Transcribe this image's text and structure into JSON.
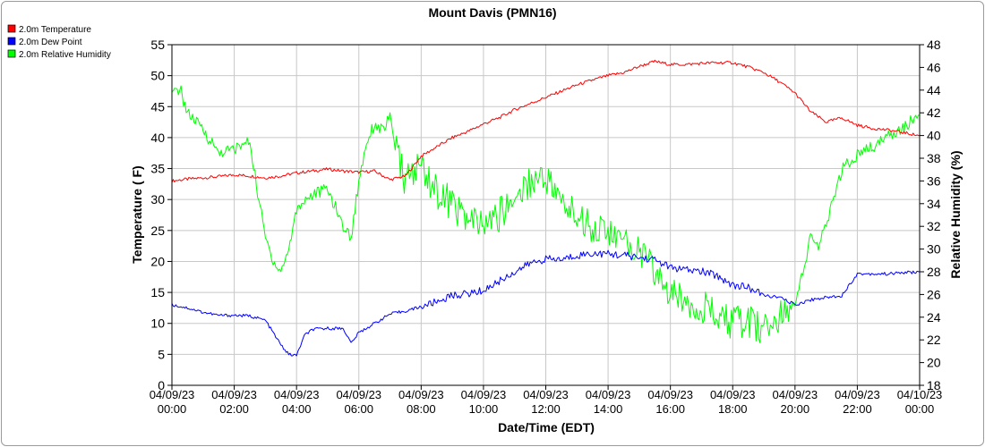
{
  "chart_data": {
    "type": "line",
    "title": "Mount Davis (PMN16)",
    "xlabel": "Date/Time (EDT)",
    "ylabel_left": "Temperature ( F)",
    "ylabel_right": "Relative Humidity (%)",
    "ylim_left": [
      0,
      55
    ],
    "ylim_right": [
      18,
      48
    ],
    "yticks_left": [
      "0",
      "5",
      "10",
      "15",
      "20",
      "25",
      "30",
      "35",
      "40",
      "45",
      "50",
      "55"
    ],
    "yticks_right": [
      "18",
      "20",
      "22",
      "24",
      "26",
      "28",
      "30",
      "32",
      "34",
      "36",
      "38",
      "40",
      "42",
      "44",
      "46",
      "48"
    ],
    "xlim_hours": [
      0,
      24
    ],
    "xticks": [
      {
        "date": "04/09/23",
        "time": "00:00",
        "hour": 0
      },
      {
        "date": "04/09/23",
        "time": "02:00",
        "hour": 2
      },
      {
        "date": "04/09/23",
        "time": "04:00",
        "hour": 4
      },
      {
        "date": "04/09/23",
        "time": "06:00",
        "hour": 6
      },
      {
        "date": "04/09/23",
        "time": "08:00",
        "hour": 8
      },
      {
        "date": "04/09/23",
        "time": "10:00",
        "hour": 10
      },
      {
        "date": "04/09/23",
        "time": "12:00",
        "hour": 12
      },
      {
        "date": "04/09/23",
        "time": "14:00",
        "hour": 14
      },
      {
        "date": "04/09/23",
        "time": "16:00",
        "hour": 16
      },
      {
        "date": "04/09/23",
        "time": "18:00",
        "hour": 18
      },
      {
        "date": "04/09/23",
        "time": "20:00",
        "hour": 20
      },
      {
        "date": "04/09/23",
        "time": "22:00",
        "hour": 22
      },
      {
        "date": "04/10/23",
        "time": "00:00",
        "hour": 24
      }
    ],
    "grid": true,
    "legend_position": "top-left",
    "series": [
      {
        "name": "2.0m Temperature",
        "color": "#ff0000",
        "axis": "left",
        "x": [
          0,
          0.5,
          1,
          1.5,
          2,
          2.5,
          3,
          3.5,
          4,
          4.5,
          5,
          5.5,
          6,
          6.5,
          7,
          7.5,
          8,
          8.5,
          9,
          9.5,
          10,
          10.5,
          11,
          11.5,
          12,
          12.5,
          13,
          13.5,
          14,
          14.5,
          15,
          15.5,
          16,
          16.5,
          17,
          17.5,
          18,
          18.5,
          19,
          19.5,
          20,
          20.5,
          21,
          21.5,
          22,
          22.5,
          23,
          23.5,
          24
        ],
        "y": [
          33,
          33.3,
          33.5,
          33.7,
          34,
          33.8,
          33.5,
          33.8,
          34.3,
          34.6,
          34.9,
          34.6,
          34.4,
          34.6,
          33.2,
          33.8,
          37,
          38.5,
          40,
          41,
          42.2,
          43.2,
          44.5,
          45.5,
          46.5,
          47.5,
          48.5,
          49.3,
          50,
          50.5,
          51.5,
          52.3,
          51.8,
          51.8,
          52,
          52.1,
          52.1,
          51.4,
          50.5,
          49,
          47.2,
          44.2,
          42.5,
          43.2,
          42,
          41.5,
          41.2,
          40.8,
          40.3
        ]
      },
      {
        "name": "2.0m Dew Point",
        "color": "#0000ff",
        "axis": "left",
        "x": [
          0,
          0.5,
          1,
          1.5,
          2,
          2.5,
          3,
          3.25,
          3.5,
          3.75,
          4,
          4.25,
          4.5,
          5,
          5.5,
          5.75,
          6,
          6.5,
          7,
          7.5,
          8,
          8.5,
          9,
          9.5,
          10,
          10.5,
          11,
          11.5,
          12,
          12.5,
          13,
          13.5,
          14,
          14.5,
          15,
          15.5,
          16,
          16.5,
          17,
          17.5,
          18,
          18.5,
          19,
          19.5,
          20,
          20.5,
          21,
          21.5,
          22,
          22.5,
          23,
          23.5,
          24
        ],
        "y": [
          13,
          12.5,
          11.8,
          11.3,
          11.3,
          11.2,
          10.5,
          8.5,
          6.5,
          5,
          4.8,
          8,
          9,
          9.2,
          9.2,
          6.8,
          8.5,
          10,
          11.5,
          12,
          12.7,
          13.5,
          14.5,
          14.8,
          15.3,
          16.8,
          18.3,
          19.7,
          20.4,
          20.3,
          21,
          21.3,
          21.2,
          21,
          20.6,
          20.3,
          19,
          18.6,
          18.4,
          17.7,
          16.2,
          15.8,
          14.5,
          14.2,
          13,
          13.8,
          14.2,
          14.5,
          18,
          18,
          18,
          18.2,
          18.3
        ]
      },
      {
        "name": "2.0m Relative Humidity",
        "color": "#00ff00",
        "axis": "right",
        "x": [
          0,
          0.25,
          0.5,
          1,
          1.5,
          2,
          2.5,
          2.75,
          3,
          3.25,
          3.5,
          3.75,
          4,
          4.25,
          4.5,
          5,
          5.5,
          5.75,
          6,
          6.25,
          6.5,
          6.75,
          7,
          7.25,
          7.5,
          8,
          8.5,
          9,
          9.5,
          10,
          10.5,
          11,
          11.5,
          12,
          12.5,
          13,
          13.5,
          14,
          14.5,
          15,
          15.5,
          16,
          16.5,
          17,
          17.5,
          18,
          18.5,
          19,
          19.5,
          20,
          20.25,
          20.5,
          20.75,
          21,
          21.25,
          21.5,
          22,
          22.5,
          23,
          23.5,
          24
        ],
        "y": [
          43.5,
          44.2,
          42,
          40.5,
          38.5,
          38.8,
          39.5,
          35,
          31,
          29,
          28,
          30,
          33.5,
          34.3,
          34.8,
          35.3,
          32,
          31,
          36,
          39.5,
          41,
          40.5,
          41.5,
          38,
          36,
          37.5,
          35,
          34,
          32.5,
          32,
          33,
          34.5,
          36,
          36.5,
          34,
          33,
          32,
          31.5,
          30.5,
          30,
          28,
          26,
          25.5,
          25,
          24,
          23.5,
          23.5,
          23,
          23.8,
          25.5,
          28,
          31,
          30.3,
          32,
          34.5,
          37,
          38.3,
          39,
          40,
          40.8,
          41.8
        ]
      }
    ]
  }
}
